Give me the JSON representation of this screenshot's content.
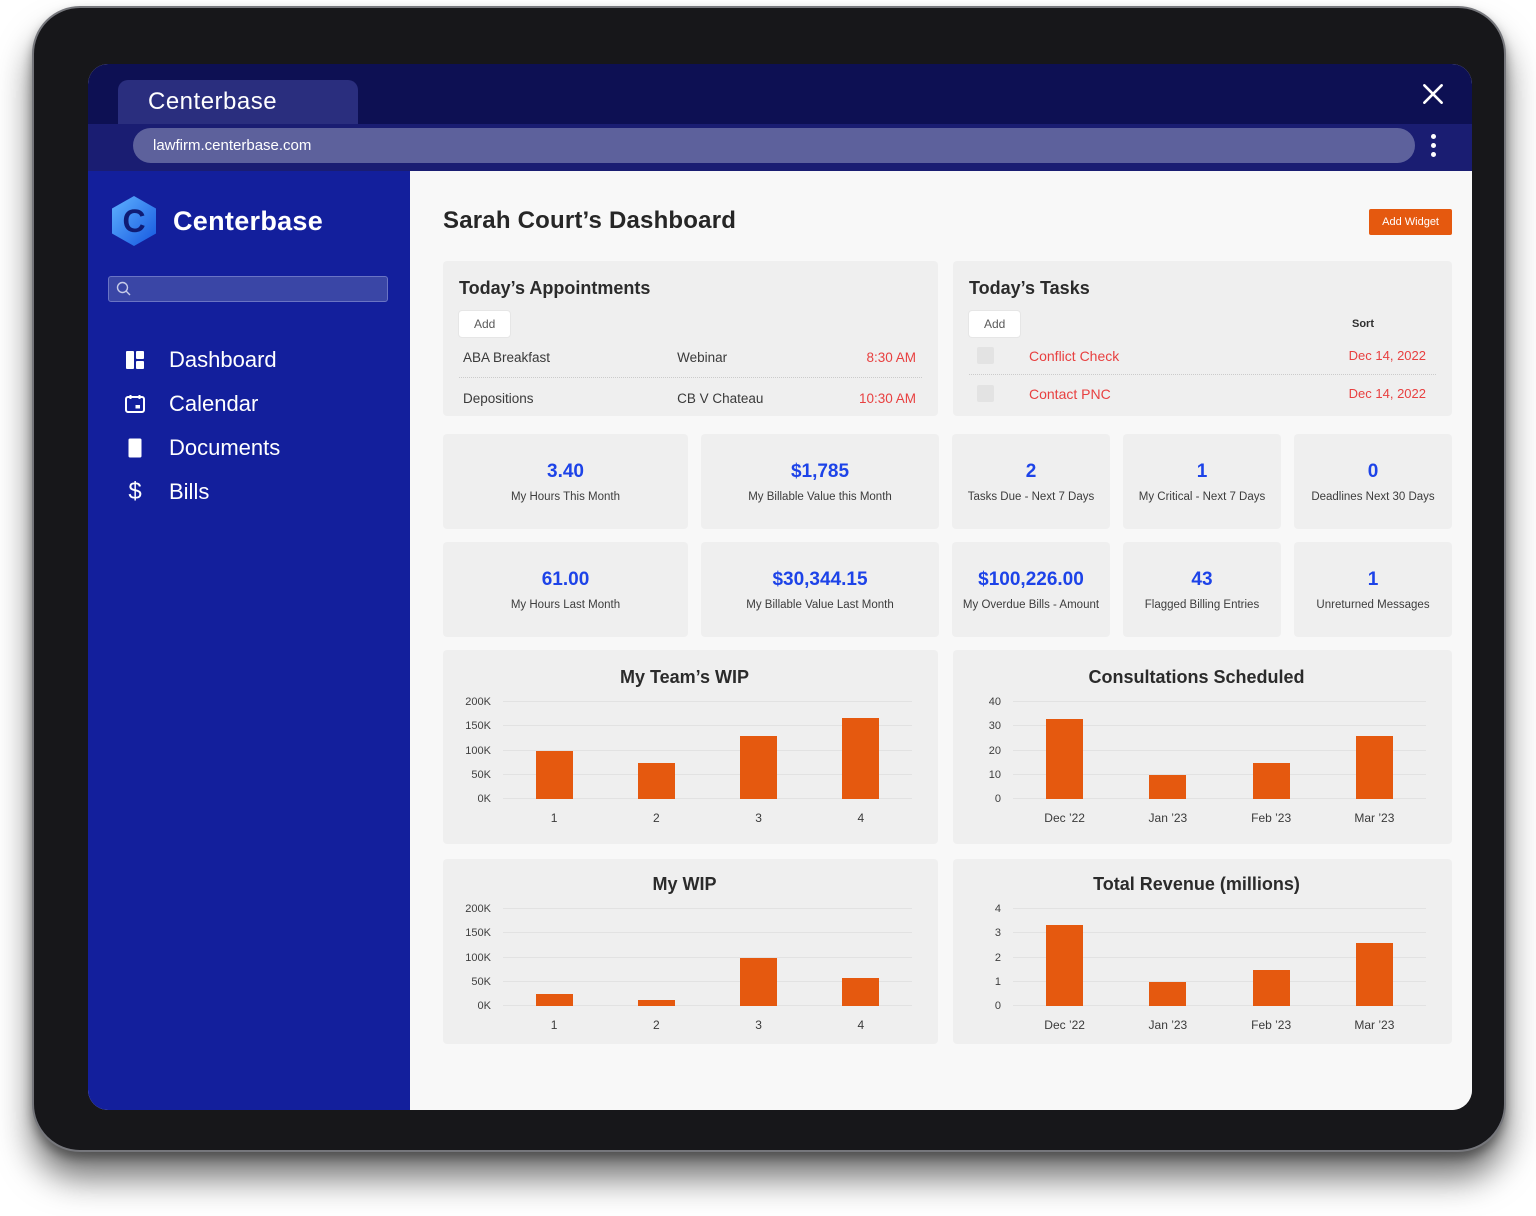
{
  "colors": {
    "accent_orange": "#E5590F",
    "bar_orange": "#E5590F",
    "stat_blue": "#1D43E8",
    "alert_red": "#E84040",
    "sidebar_blue": "#131F9C",
    "tabstrip_navy": "#0D1053",
    "card_gray": "#EFEFEF"
  },
  "browser": {
    "tab_title": "Centerbase",
    "url": "lawfirm.centerbase.com"
  },
  "sidebar": {
    "brand": "Centerbase",
    "search_placeholder": "",
    "items": [
      {
        "label": "Dashboard",
        "icon": "dashboard-icon"
      },
      {
        "label": "Calendar",
        "icon": "calendar-icon"
      },
      {
        "label": "Documents",
        "icon": "document-icon"
      },
      {
        "label": "Bills",
        "icon": "dollar-icon"
      }
    ]
  },
  "header": {
    "title": "Sarah Court’s Dashboard",
    "add_widget_label": "Add Widget"
  },
  "appointments": {
    "title": "Today’s Appointments",
    "add_label": "Add",
    "rows": [
      {
        "name": "ABA Breakfast",
        "detail": "Webinar",
        "time": "8:30 AM"
      },
      {
        "name": "Depositions",
        "detail": "CB V Chateau",
        "time": "10:30 AM"
      }
    ]
  },
  "tasks": {
    "title": "Today’s Tasks",
    "add_label": "Add",
    "sort_label": "Sort",
    "rows": [
      {
        "name": "Conflict Check",
        "date": "Dec 14, 2022"
      },
      {
        "name": "Contact PNC",
        "date": "Dec 14, 2022"
      }
    ]
  },
  "stat_rows": [
    [
      {
        "value": "3.40",
        "label": "My Hours This Month"
      },
      {
        "value": "$1,785",
        "label": "My Billable Value this Month"
      },
      {
        "value": "2",
        "label": "Tasks Due - Next 7 Days"
      },
      {
        "value": "1",
        "label": "My Critical - Next 7 Days"
      },
      {
        "value": "0",
        "label": "Deadlines Next 30 Days"
      }
    ],
    [
      {
        "value": "61.00",
        "label": "My Hours Last Month"
      },
      {
        "value": "$30,344.15",
        "label": "My Billable Value Last Month"
      },
      {
        "value": "$100,226.00",
        "label": "My Overdue Bills - Amount"
      },
      {
        "value": "43",
        "label": "Flagged Billing Entries"
      },
      {
        "value": "1",
        "label": "Unreturned Messages"
      }
    ]
  ],
  "chart_data": [
    {
      "type": "bar",
      "title": "My Team’s WIP",
      "categories": [
        "1",
        "2",
        "3",
        "4"
      ],
      "values": [
        100000,
        75000,
        130000,
        167000
      ],
      "ylim": [
        0,
        200000
      ],
      "yticks": [
        "200K",
        "150K",
        "100K",
        "50K",
        "0K"
      ],
      "ytick_values": [
        200000,
        150000,
        100000,
        50000,
        0
      ],
      "xlabel": "",
      "ylabel": "",
      "grid": true,
      "legend": false
    },
    {
      "type": "bar",
      "title": "Consultations Scheduled",
      "categories": [
        "Dec ’22",
        "Jan ’23",
        "Feb ’23",
        "Mar ’23"
      ],
      "values": [
        33,
        10,
        15,
        26
      ],
      "ylim": [
        0,
        40
      ],
      "yticks": [
        "40",
        "30",
        "20",
        "10",
        "0"
      ],
      "ytick_values": [
        40,
        30,
        20,
        10,
        0
      ],
      "xlabel": "",
      "ylabel": "",
      "grid": true,
      "legend": false
    },
    {
      "type": "bar",
      "title": "My WIP",
      "categories": [
        "1",
        "2",
        "3",
        "4"
      ],
      "values": [
        25000,
        12000,
        100000,
        57000
      ],
      "ylim": [
        0,
        200000
      ],
      "yticks": [
        "200K",
        "150K",
        "100K",
        "50K",
        "0K"
      ],
      "ytick_values": [
        200000,
        150000,
        100000,
        50000,
        0
      ],
      "xlabel": "",
      "ylabel": "",
      "grid": true,
      "legend": false
    },
    {
      "type": "bar",
      "title": "Total Revenue (millions)",
      "categories": [
        "Dec ’22",
        "Jan ’23",
        "Feb ’23",
        "Mar ’23"
      ],
      "values": [
        3.35,
        1.0,
        1.5,
        2.6
      ],
      "ylim": [
        0,
        4
      ],
      "yticks": [
        "4",
        "3",
        "2",
        "1",
        "0"
      ],
      "ytick_values": [
        4,
        3,
        2,
        1,
        0
      ],
      "xlabel": "",
      "ylabel": "",
      "grid": true,
      "legend": false
    }
  ]
}
